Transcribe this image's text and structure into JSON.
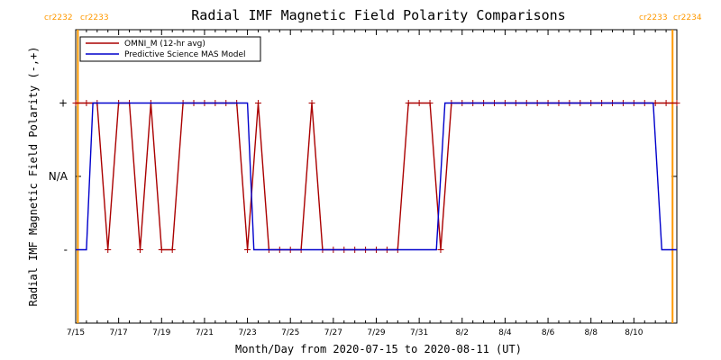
{
  "chart_data": {
    "type": "line",
    "title": "Radial IMF Magnetic Field Polarity Comparisons",
    "xlabel": "Month/Day from 2020-07-15 to 2020-08-11 (UT)",
    "ylabel": "Radial IMF Magnetic Field Polarity (-,+)",
    "x_ticks": [
      "7/15",
      "7/17",
      "7/19",
      "7/21",
      "7/23",
      "7/25",
      "7/27",
      "7/29",
      "7/31",
      "8/2",
      "8/4",
      "8/6",
      "8/8",
      "8/10"
    ],
    "y_ticks": [
      "+",
      "N/A",
      "-"
    ],
    "xlim_days": [
      0,
      28
    ],
    "ylim": [
      -2,
      2
    ],
    "carrington_markers": [
      {
        "day": 0.1,
        "left_label": "cr2232",
        "right_label": "cr2233",
        "color": "#ff9900"
      },
      {
        "day": 27.8,
        "left_label": "cr2233",
        "right_label": "cr2234",
        "color": "#ff9900"
      }
    ],
    "series": [
      {
        "name": "OMNI_M (12-hr avg)",
        "color": "#aa0000",
        "marker": "+",
        "x": [
          0,
          0.5,
          1,
          1.5,
          2,
          2.5,
          3,
          3.5,
          4,
          4.5,
          5,
          5.5,
          6,
          6.5,
          7,
          7.5,
          8,
          8.5,
          9,
          9.5,
          10,
          10.5,
          11,
          11.5,
          12,
          12.5,
          13,
          13.5,
          14,
          14.5,
          15,
          15.5,
          16,
          16.5,
          17,
          17.5,
          18,
          18.5,
          19,
          19.5,
          20,
          20.5,
          21,
          21.5,
          22,
          22.5,
          23,
          23.5,
          24,
          24.5,
          25,
          25.5,
          26,
          26.5,
          27,
          27.5,
          28
        ],
        "y": [
          1,
          1,
          1,
          -1,
          1,
          1,
          -1,
          1,
          -1,
          -1,
          1,
          1,
          1,
          1,
          1,
          1,
          -1,
          1,
          -1,
          -1,
          -1,
          -1,
          1,
          -1,
          -1,
          -1,
          -1,
          -1,
          -1,
          -1,
          -1,
          1,
          1,
          1,
          -1,
          1,
          1,
          1,
          1,
          1,
          1,
          1,
          1,
          1,
          1,
          1,
          1,
          1,
          1,
          1,
          1,
          1,
          1,
          1,
          1,
          1,
          1
        ]
      },
      {
        "name": "Predictive Science MAS Model",
        "color": "#0000cc",
        "x": [
          0,
          0.5,
          0.8,
          1.0,
          8.0,
          8.3,
          16.8,
          17.2,
          26.9,
          27.3,
          28
        ],
        "y": [
          -1,
          -1,
          1,
          1,
          1,
          -1,
          -1,
          1,
          1,
          -1,
          -1
        ]
      }
    ]
  }
}
